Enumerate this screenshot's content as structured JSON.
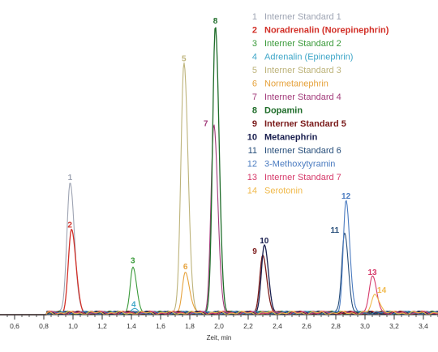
{
  "chart_data": {
    "type": "line",
    "xlabel": "Zeit, min",
    "xlim": [
      0.5,
      3.5
    ],
    "x_ticks": [
      "0,6",
      "0,8",
      "1,0",
      "1,2",
      "1,4",
      "1,6",
      "1,8",
      "2,0",
      "2,2",
      "2,4",
      "2,6",
      "2,8",
      "3,0",
      "3,2",
      "3,4"
    ],
    "x_tick_values": [
      0.6,
      0.8,
      1.0,
      1.2,
      1.4,
      1.6,
      1.8,
      2.0,
      2.2,
      2.4,
      2.6,
      2.8,
      3.0,
      3.2,
      3.4
    ],
    "ylim": [
      0,
      100
    ],
    "grid": false,
    "legend_position": "top-right",
    "series": [
      {
        "number": "1",
        "name": "Interner Standard 1",
        "color": "#9ea4b3",
        "bold": false,
        "peak_time": 0.98,
        "peak_height": 44,
        "width": 0.022
      },
      {
        "number": "2",
        "name": "Noradrenalin (Norepinephrin)",
        "color": "#d22f27",
        "bold": true,
        "peak_time": 0.99,
        "peak_height": 28,
        "width": 0.022
      },
      {
        "number": "3",
        "name": "Interner Standard 2",
        "color": "#3a9a3a",
        "bold": false,
        "peak_time": 1.41,
        "peak_height": 16,
        "width": 0.018
      },
      {
        "number": "4",
        "name": "Adrenalin (Epinephrin)",
        "color": "#3ea6c8",
        "bold": false,
        "peak_time": 1.41,
        "peak_height": 1.2,
        "width": 0.018
      },
      {
        "number": "5",
        "name": "Interner Standard 3",
        "color": "#bdb37a",
        "bold": false,
        "peak_time": 1.76,
        "peak_height": 84,
        "width": 0.021
      },
      {
        "number": "6",
        "name": "Normetanephrin",
        "color": "#e6a23c",
        "bold": false,
        "peak_time": 1.77,
        "peak_height": 14,
        "width": 0.021
      },
      {
        "number": "7",
        "name": "Interner Standard 4",
        "color": "#a23a7a",
        "bold": false,
        "peak_time": 1.965,
        "peak_height": 63,
        "width": 0.02
      },
      {
        "number": "8",
        "name": "Dopamin",
        "color": "#1f6d2a",
        "bold": true,
        "peak_time": 1.975,
        "peak_height": 97,
        "width": 0.019
      },
      {
        "number": "9",
        "name": "Interner Standard 5",
        "color": "#7a1a1a",
        "bold": true,
        "peak_time": 2.3,
        "peak_height": 20,
        "width": 0.02
      },
      {
        "number": "10",
        "name": "Metanephrin",
        "color": "#1a1f4f",
        "bold": true,
        "peak_time": 2.31,
        "peak_height": 23,
        "width": 0.02
      },
      {
        "number": "11",
        "name": "Interner Standard 6",
        "color": "#274e7a",
        "bold": false,
        "peak_time": 2.86,
        "peak_height": 27,
        "width": 0.019
      },
      {
        "number": "12",
        "name": "3-Methoxytyramin",
        "color": "#4a7bc0",
        "bold": false,
        "peak_time": 2.87,
        "peak_height": 38,
        "width": 0.019
      },
      {
        "number": "13",
        "name": "Interner Standard 7",
        "color": "#d63a6a",
        "bold": false,
        "peak_time": 3.05,
        "peak_height": 12,
        "width": 0.022
      },
      {
        "number": "14",
        "name": "Serotonin",
        "color": "#f0b94a",
        "bold": false,
        "peak_time": 3.07,
        "peak_height": 6.5,
        "width": 0.022
      }
    ]
  }
}
